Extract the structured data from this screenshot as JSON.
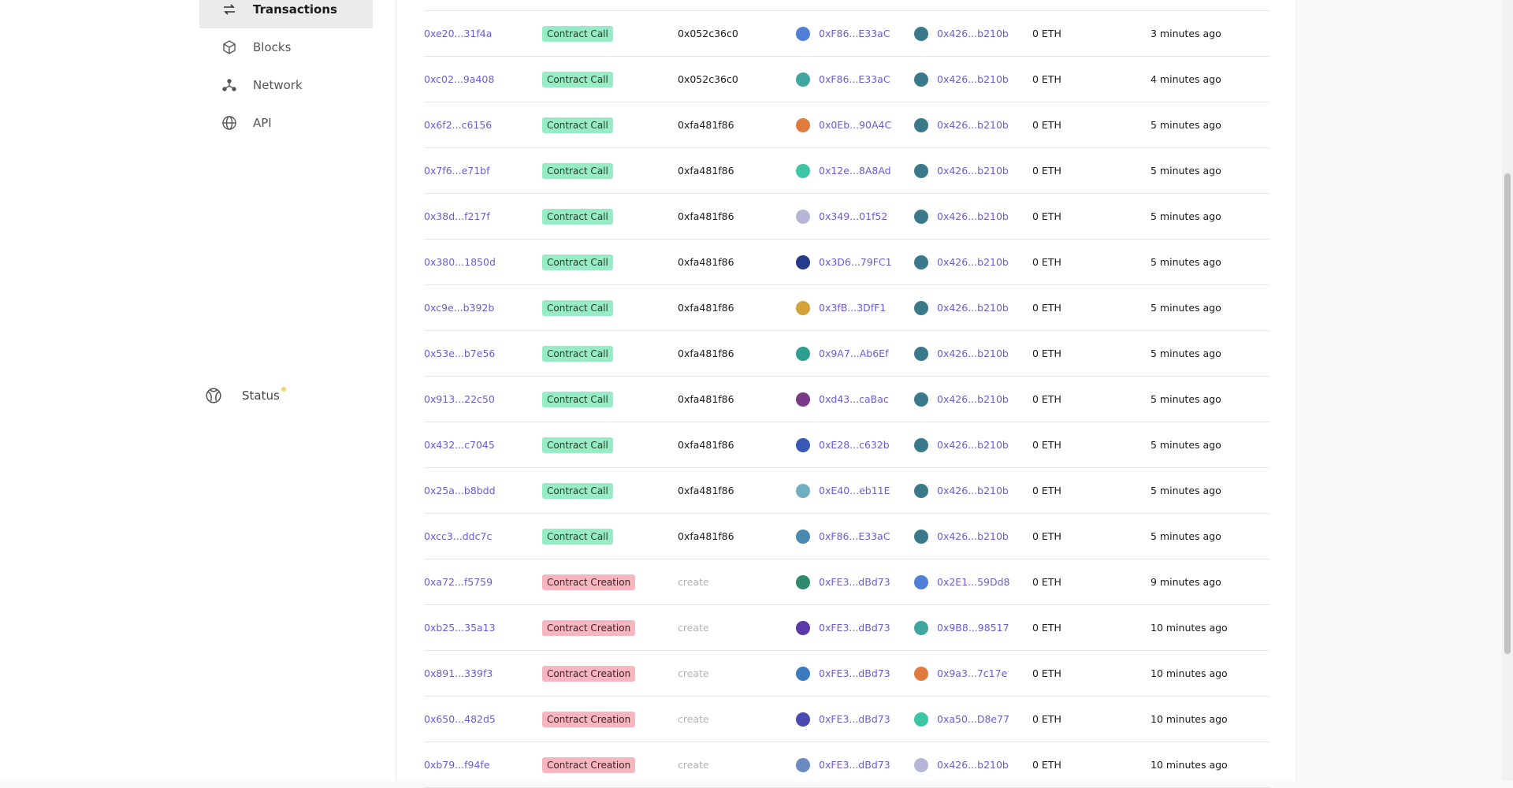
{
  "sidebar": {
    "items": [
      {
        "label": "Transactions",
        "icon": "transactions-icon"
      },
      {
        "label": "Blocks",
        "icon": "cube-icon"
      },
      {
        "label": "Network",
        "icon": "network-icon"
      },
      {
        "label": "API",
        "icon": "globe-icon"
      }
    ],
    "status_label": "Status"
  },
  "colors": {
    "link": "#6b5bd6",
    "call_badge": "#98ecc5",
    "create_badge": "#f7b6bf",
    "status_dot": "#f5d36b"
  },
  "transactions": [
    {
      "hash": "0xe20...31f4a",
      "type": "Contract Call",
      "method": "0x052c36c0",
      "from": "0xF86...E33aC",
      "to": "0x426...b210b",
      "value": "0 ETH",
      "age": "3 minutes ago"
    },
    {
      "hash": "0xc02...9a408",
      "type": "Contract Call",
      "method": "0x052c36c0",
      "from": "0xF86...E33aC",
      "to": "0x426...b210b",
      "value": "0 ETH",
      "age": "4 minutes ago"
    },
    {
      "hash": "0x6f2...c6156",
      "type": "Contract Call",
      "method": "0xfa481f86",
      "from": "0x0Eb...90A4C",
      "to": "0x426...b210b",
      "value": "0 ETH",
      "age": "5 minutes ago"
    },
    {
      "hash": "0x7f6...e71bf",
      "type": "Contract Call",
      "method": "0xfa481f86",
      "from": "0x12e...8A8Ad",
      "to": "0x426...b210b",
      "value": "0 ETH",
      "age": "5 minutes ago"
    },
    {
      "hash": "0x38d...f217f",
      "type": "Contract Call",
      "method": "0xfa481f86",
      "from": "0x349...01f52",
      "to": "0x426...b210b",
      "value": "0 ETH",
      "age": "5 minutes ago"
    },
    {
      "hash": "0x380...1850d",
      "type": "Contract Call",
      "method": "0xfa481f86",
      "from": "0x3D6...79FC1",
      "to": "0x426...b210b",
      "value": "0 ETH",
      "age": "5 minutes ago"
    },
    {
      "hash": "0xc9e...b392b",
      "type": "Contract Call",
      "method": "0xfa481f86",
      "from": "0x3fB...3DfF1",
      "to": "0x426...b210b",
      "value": "0 ETH",
      "age": "5 minutes ago"
    },
    {
      "hash": "0x53e...b7e56",
      "type": "Contract Call",
      "method": "0xfa481f86",
      "from": "0x9A7...Ab6Ef",
      "to": "0x426...b210b",
      "value": "0 ETH",
      "age": "5 minutes ago"
    },
    {
      "hash": "0x913...22c50",
      "type": "Contract Call",
      "method": "0xfa481f86",
      "from": "0xd43...caBac",
      "to": "0x426...b210b",
      "value": "0 ETH",
      "age": "5 minutes ago"
    },
    {
      "hash": "0x432...c7045",
      "type": "Contract Call",
      "method": "0xfa481f86",
      "from": "0xE28...c632b",
      "to": "0x426...b210b",
      "value": "0 ETH",
      "age": "5 minutes ago"
    },
    {
      "hash": "0x25a...b8bdd",
      "type": "Contract Call",
      "method": "0xfa481f86",
      "from": "0xE40...eb11E",
      "to": "0x426...b210b",
      "value": "0 ETH",
      "age": "5 minutes ago"
    },
    {
      "hash": "0xcc3...ddc7c",
      "type": "Contract Call",
      "method": "0xfa481f86",
      "from": "0xF86...E33aC",
      "to": "0x426...b210b",
      "value": "0 ETH",
      "age": "5 minutes ago"
    },
    {
      "hash": "0xa72...f5759",
      "type": "Contract Creation",
      "method": "create",
      "from": "0xFE3...dBd73",
      "to": "0x2E1...59Dd8",
      "value": "0 ETH",
      "age": "9 minutes ago"
    },
    {
      "hash": "0xb25...35a13",
      "type": "Contract Creation",
      "method": "create",
      "from": "0xFE3...dBd73",
      "to": "0x9B8...98517",
      "value": "0 ETH",
      "age": "10 minutes ago"
    },
    {
      "hash": "0x891...339f3",
      "type": "Contract Creation",
      "method": "create",
      "from": "0xFE3...dBd73",
      "to": "0x9a3...7c17e",
      "value": "0 ETH",
      "age": "10 minutes ago"
    },
    {
      "hash": "0x650...482d5",
      "type": "Contract Creation",
      "method": "create",
      "from": "0xFE3...dBd73",
      "to": "0xa50...D8e77",
      "value": "0 ETH",
      "age": "10 minutes ago"
    },
    {
      "hash": "0xb79...f94fe",
      "type": "Contract Creation",
      "method": "create",
      "from": "0xFE3...dBd73",
      "to": "0x426...b210b",
      "value": "0 ETH",
      "age": "10 minutes ago"
    }
  ]
}
